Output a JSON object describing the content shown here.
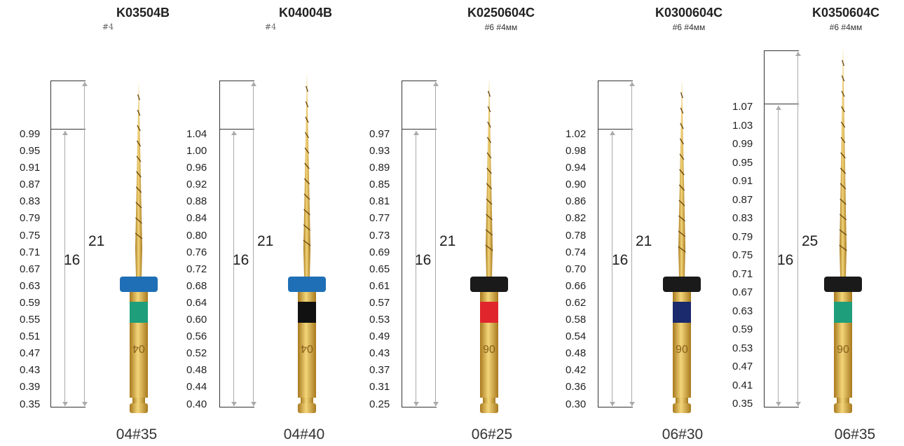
{
  "files": [
    {
      "code": "K03504B",
      "sub": "#4",
      "sub_style": "serif",
      "scale": [
        "0.99",
        "0.95",
        "0.91",
        "0.87",
        "0.83",
        "0.79",
        "0.75",
        "0.71",
        "0.67",
        "0.63",
        "0.59",
        "0.55",
        "0.51",
        "0.47",
        "0.43",
        "0.39",
        "0.35"
      ],
      "total_length": "21",
      "working_length": "16",
      "stopper_color": "#1f6fb6",
      "band_color": "#1e9e7a",
      "band_icon": "",
      "caption": "04#35"
    },
    {
      "code": "K04004B",
      "sub": "#4",
      "sub_style": "serif",
      "scale": [
        "1.04",
        "1.00",
        "0.96",
        "0.92",
        "0.88",
        "0.84",
        "0.80",
        "0.76",
        "0.72",
        "0.68",
        "0.64",
        "0.60",
        "0.56",
        "0.52",
        "0.48",
        "0.44",
        "0.40"
      ],
      "total_length": "21",
      "working_length": "16",
      "stopper_color": "#1f6fb6",
      "band_color": "#111111",
      "band_icon": "",
      "caption": "04#40"
    },
    {
      "code": "K0250604C",
      "sub": "#6 #4мм",
      "sub_style": "sans",
      "scale": [
        "0.97",
        "0.93",
        "0.89",
        "0.85",
        "0.81",
        "0.77",
        "0.73",
        "0.69",
        "0.65",
        "0.61",
        "0.57",
        "0.53",
        "0.49",
        "0.43",
        "0.37",
        "0.31",
        "0.25"
      ],
      "total_length": "21",
      "working_length": "16",
      "stopper_color": "#1a1a1a",
      "band_color": "#e0262c",
      "band_icon": "",
      "caption": "06#25"
    },
    {
      "code": "K0300604C",
      "sub": "#6 #4мм",
      "sub_style": "sans",
      "scale": [
        "1.02",
        "0.98",
        "0.94",
        "0.90",
        "0.86",
        "0.82",
        "0.78",
        "0.74",
        "0.70",
        "0.66",
        "0.62",
        "0.58",
        "0.54",
        "0.48",
        "0.42",
        "0.36",
        "0.30"
      ],
      "total_length": "21",
      "working_length": "16",
      "stopper_color": "#1a1a1a",
      "band_color": "#1a2a6c",
      "band_icon": "",
      "caption": "06#30"
    },
    {
      "code": "K0350604C",
      "sub": "#6 #4мм",
      "sub_style": "sans",
      "scale": [
        "1.07",
        "1.03",
        "0.99",
        "0.95",
        "0.91",
        "0.87",
        "0.83",
        "0.79",
        "0.75",
        "0.71",
        "0.67",
        "0.63",
        "0.59",
        "0.53",
        "0.47",
        "0.41",
        "0.35"
      ],
      "total_length": "25",
      "working_length": "16",
      "stopper_color": "#1a1a1a",
      "band_color": "#1e9e7a",
      "band_icon": "",
      "caption": "06#35"
    }
  ],
  "colors": {
    "gold": "#d9a632",
    "gold_light": "#f3d57a",
    "gold_dark": "#a8791d"
  }
}
